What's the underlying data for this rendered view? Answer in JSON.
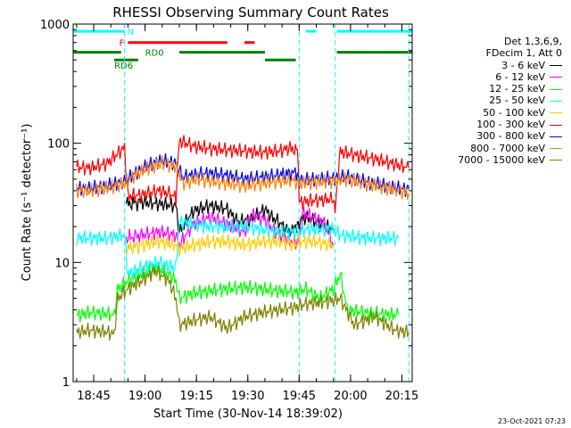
{
  "chart_data": {
    "type": "line",
    "title": "RHESSI Observing Summary Count Rates",
    "xlabel": "Start Time (30-Nov-14 18:39:02)",
    "ylabel": "Count Rate (s⁻¹ detector⁻¹)",
    "yscale": "log",
    "ylim": [
      1,
      1000
    ],
    "xlim_minutes": [
      0,
      99
    ],
    "x_ticks": [
      {
        "label": "18:45",
        "minutes": 6
      },
      {
        "label": "19:00",
        "minutes": 21
      },
      {
        "label": "19:15",
        "minutes": 36
      },
      {
        "label": "19:30",
        "minutes": 51
      },
      {
        "label": "19:45",
        "minutes": 66
      },
      {
        "label": "20:00",
        "minutes": 81
      },
      {
        "label": "20:15",
        "minutes": 96
      }
    ],
    "y_ticks": [
      {
        "label": "1",
        "value": 1
      },
      {
        "label": "10",
        "value": 10
      },
      {
        "label": "100",
        "value": 100
      },
      {
        "label": "1000",
        "value": 1000
      }
    ],
    "legend_header": [
      "Det 1,3,6,9,",
      "FDecim 1, Att 0"
    ],
    "flag_bars": [
      {
        "label": "N",
        "color": "#00ffff",
        "value": 870,
        "segments": [
          [
            0,
            15
          ],
          [
            68,
            71
          ],
          [
            77,
            99
          ]
        ]
      },
      {
        "label": "F",
        "color": "#ff0000",
        "value": 700,
        "segments": [
          [
            16,
            45
          ],
          [
            50,
            53
          ]
        ]
      },
      {
        "label": "RD0",
        "color": "#008000",
        "value": 580,
        "segments": [
          [
            0,
            14
          ],
          [
            31,
            56
          ],
          [
            77,
            99
          ]
        ]
      },
      {
        "label": "RD6",
        "color": "#008000",
        "value": 500,
        "segments": [
          [
            12,
            19
          ],
          [
            56,
            65
          ]
        ]
      }
    ],
    "vlines_minutes": [
      15,
      66,
      76.5,
      98
    ],
    "series": [
      {
        "name": "3 - 6 keV",
        "color": "#000000",
        "points": [
          [
            15.5,
            31
          ],
          [
            20,
            32
          ],
          [
            25,
            31
          ],
          [
            30,
            30
          ],
          [
            31,
            18
          ],
          [
            35,
            27
          ],
          [
            40,
            30
          ],
          [
            45,
            28
          ],
          [
            48,
            22
          ],
          [
            52,
            23
          ],
          [
            56,
            28
          ],
          [
            58,
            24
          ],
          [
            60,
            22
          ],
          [
            62,
            19
          ],
          [
            64,
            18
          ],
          [
            65.5,
            22
          ],
          [
            66,
            22
          ],
          [
            68,
            24
          ],
          [
            72,
            21
          ],
          [
            76,
            19
          ]
        ]
      },
      {
        "name": "6 - 12 keV",
        "color": "#ff00ff",
        "points": [
          [
            15.5,
            16
          ],
          [
            20,
            17
          ],
          [
            25,
            18
          ],
          [
            30,
            17
          ],
          [
            31,
            14
          ],
          [
            35,
            21
          ],
          [
            40,
            24
          ],
          [
            45,
            21
          ],
          [
            50,
            18
          ],
          [
            52,
            25
          ],
          [
            56,
            23
          ],
          [
            59,
            18
          ],
          [
            62,
            16
          ],
          [
            64,
            15
          ],
          [
            66,
            15
          ],
          [
            67,
            26
          ],
          [
            70,
            24
          ],
          [
            73,
            22
          ],
          [
            76,
            14
          ]
        ]
      },
      {
        "name": "12 - 25 keV",
        "color": "#00ff00",
        "points": [
          [
            1,
            3.6
          ],
          [
            5,
            3.8
          ],
          [
            10,
            3.7
          ],
          [
            12,
            3.6
          ],
          [
            13,
            6
          ],
          [
            16,
            7
          ],
          [
            20,
            8
          ],
          [
            24,
            9
          ],
          [
            28,
            8
          ],
          [
            30,
            7
          ],
          [
            31,
            5
          ],
          [
            35,
            5.5
          ],
          [
            40,
            5.8
          ],
          [
            45,
            6
          ],
          [
            50,
            6.2
          ],
          [
            55,
            6
          ],
          [
            60,
            5.8
          ],
          [
            65,
            5.6
          ],
          [
            68,
            6
          ],
          [
            72,
            5
          ],
          [
            76,
            6
          ],
          [
            78,
            8
          ],
          [
            80,
            4
          ],
          [
            85,
            3.8
          ],
          [
            90,
            3.7
          ],
          [
            95,
            3.6
          ]
        ]
      },
      {
        "name": "25 - 50 keV",
        "color": "#00ffff",
        "points": [
          [
            1,
            16
          ],
          [
            5,
            16
          ],
          [
            10,
            16
          ],
          [
            15,
            17
          ],
          [
            16,
            8
          ],
          [
            20,
            9
          ],
          [
            25,
            10
          ],
          [
            30,
            9
          ],
          [
            31,
            22
          ],
          [
            35,
            21
          ],
          [
            40,
            20
          ],
          [
            45,
            20
          ],
          [
            50,
            20
          ],
          [
            55,
            19
          ],
          [
            60,
            18
          ],
          [
            65,
            18
          ],
          [
            66,
            18
          ],
          [
            68,
            19
          ],
          [
            72,
            19
          ],
          [
            76,
            19
          ],
          [
            78,
            17
          ],
          [
            85,
            16
          ],
          [
            90,
            16
          ],
          [
            95,
            16
          ]
        ]
      },
      {
        "name": "50 - 100 keV",
        "color": "#ffcc00",
        "points": [
          [
            15.5,
            13
          ],
          [
            20,
            14
          ],
          [
            25,
            15
          ],
          [
            30,
            14
          ],
          [
            31,
            13
          ],
          [
            35,
            14
          ],
          [
            40,
            15
          ],
          [
            45,
            15
          ],
          [
            50,
            14
          ],
          [
            55,
            15
          ],
          [
            60,
            15
          ],
          [
            65,
            14
          ],
          [
            66,
            15
          ],
          [
            70,
            15
          ],
          [
            76,
            14
          ]
        ]
      },
      {
        "name": "100 - 300 keV",
        "color": "#ff0000",
        "points": [
          [
            1,
            63
          ],
          [
            5,
            62
          ],
          [
            10,
            68
          ],
          [
            13,
            82
          ],
          [
            15,
            92
          ],
          [
            16,
            36
          ],
          [
            20,
            37
          ],
          [
            25,
            40
          ],
          [
            28,
            38
          ],
          [
            30,
            35
          ],
          [
            31,
            105
          ],
          [
            35,
            95
          ],
          [
            40,
            90
          ],
          [
            45,
            88
          ],
          [
            50,
            86
          ],
          [
            55,
            84
          ],
          [
            60,
            86
          ],
          [
            64,
            92
          ],
          [
            65.5,
            88
          ],
          [
            66,
            32
          ],
          [
            70,
            33
          ],
          [
            75,
            34
          ],
          [
            76.5,
            30
          ],
          [
            78,
            85
          ],
          [
            82,
            80
          ],
          [
            88,
            74
          ],
          [
            94,
            67
          ],
          [
            98,
            62
          ]
        ]
      },
      {
        "name": "300 - 800 keV",
        "color": "#0000ff",
        "points": [
          [
            1,
            42
          ],
          [
            5,
            42
          ],
          [
            10,
            44
          ],
          [
            15,
            48
          ],
          [
            18,
            56
          ],
          [
            22,
            66
          ],
          [
            26,
            72
          ],
          [
            30,
            68
          ],
          [
            32,
            52
          ],
          [
            36,
            55
          ],
          [
            40,
            56
          ],
          [
            45,
            54
          ],
          [
            50,
            50
          ],
          [
            55,
            52
          ],
          [
            60,
            54
          ],
          [
            65.5,
            57
          ],
          [
            66,
            49
          ],
          [
            70,
            50
          ],
          [
            76,
            51
          ],
          [
            80,
            53
          ],
          [
            85,
            48
          ],
          [
            90,
            45
          ],
          [
            95,
            42
          ],
          [
            98,
            41
          ]
        ]
      },
      {
        "name": "800 - 7000 keV",
        "color": "#ff8000",
        "points": [
          [
            1,
            40
          ],
          [
            5,
            40
          ],
          [
            10,
            42
          ],
          [
            15,
            46
          ],
          [
            18,
            54
          ],
          [
            22,
            62
          ],
          [
            26,
            68
          ],
          [
            30,
            64
          ],
          [
            32,
            46
          ],
          [
            36,
            50
          ],
          [
            40,
            48
          ],
          [
            45,
            46
          ],
          [
            50,
            44
          ],
          [
            55,
            46
          ],
          [
            60,
            48
          ],
          [
            64,
            49
          ],
          [
            66,
            46
          ],
          [
            70,
            47
          ],
          [
            76,
            48
          ],
          [
            80,
            50
          ],
          [
            85,
            46
          ],
          [
            90,
            43
          ],
          [
            95,
            40
          ],
          [
            98,
            38
          ]
        ]
      },
      {
        "name": "7000 - 15000 keV",
        "color": "#808000",
        "points": [
          [
            1,
            2.6
          ],
          [
            5,
            2.7
          ],
          [
            10,
            2.6
          ],
          [
            12,
            2.5
          ],
          [
            13,
            5
          ],
          [
            16,
            6
          ],
          [
            20,
            7
          ],
          [
            24,
            8.5
          ],
          [
            28,
            7
          ],
          [
            30,
            5
          ],
          [
            31,
            3
          ],
          [
            36,
            3.3
          ],
          [
            40,
            3.5
          ],
          [
            45,
            2.8
          ],
          [
            50,
            3.5
          ],
          [
            55,
            3.8
          ],
          [
            60,
            4
          ],
          [
            65,
            4.2
          ],
          [
            68,
            4.5
          ],
          [
            72,
            4.6
          ],
          [
            76,
            4.8
          ],
          [
            78,
            5
          ],
          [
            82,
            3
          ],
          [
            88,
            3.5
          ],
          [
            94,
            2.7
          ],
          [
            98,
            2.6
          ]
        ]
      }
    ]
  },
  "footer": {
    "timestamp": "23-Oct-2021 07:23"
  }
}
